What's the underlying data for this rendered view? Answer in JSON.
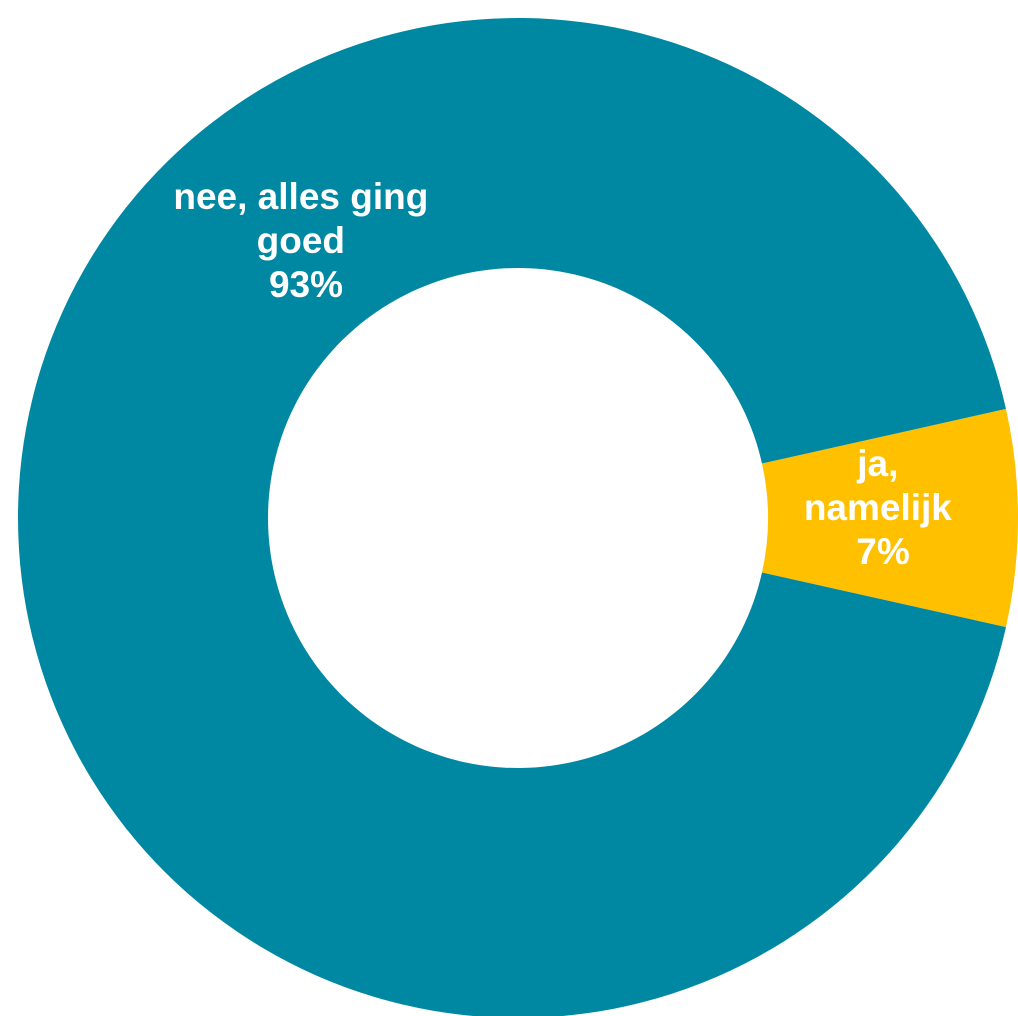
{
  "chart_data": {
    "type": "pie",
    "variant": "donut",
    "slices": [
      {
        "label_lines": [
          "ja,",
          "namelijk"
        ],
        "value_label": "7%",
        "value": 7,
        "color": "#FFC000"
      },
      {
        "label_lines": [
          "nee, alles ging",
          "goed"
        ],
        "value_label": "93%",
        "value": 93,
        "color": "#0088A3"
      }
    ],
    "legend": "none",
    "background": "#FFFFFF"
  }
}
